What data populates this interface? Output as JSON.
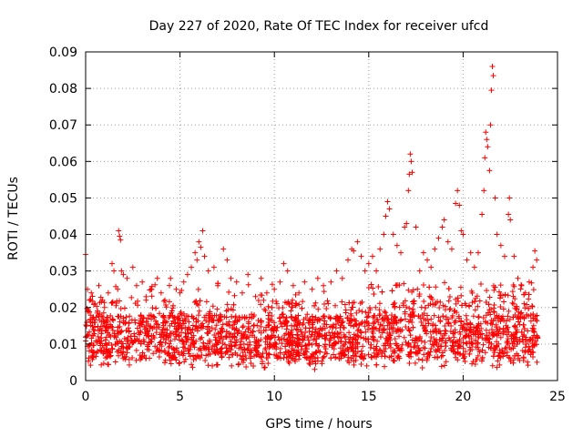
{
  "chart_data": {
    "type": "scatter",
    "title": "Day 227 of 2020, Rate Of TEC Index for receiver ufcd",
    "xlabel": "GPS time / hours",
    "ylabel": "ROTI / TECUs",
    "xlim": [
      0,
      25
    ],
    "ylim": [
      0,
      0.09
    ],
    "xticks": [
      "0",
      "5",
      "10",
      "15",
      "20",
      "25"
    ],
    "xtick_values": [
      0,
      5,
      10,
      15,
      20,
      25
    ],
    "yticks": [
      "0",
      "0.01",
      "0.02",
      "0.03",
      "0.04",
      "0.05",
      "0.06",
      "0.07",
      "0.08",
      "0.09"
    ],
    "ytick_values": [
      0,
      0.01,
      0.02,
      0.03,
      0.04,
      0.05,
      0.06,
      0.07,
      0.08,
      0.09
    ],
    "grid": true,
    "marker": "+",
    "series": [
      {
        "name": "ROTI",
        "color": "#ff0000",
        "points": [
          [
            0.0,
            0.0345
          ],
          [
            0.1,
            0.025
          ],
          [
            0.2,
            0.022
          ],
          [
            0.3,
            0.024
          ],
          [
            0.5,
            0.021
          ],
          [
            0.7,
            0.026
          ],
          [
            0.9,
            0.022
          ],
          [
            1.0,
            0.02
          ],
          [
            1.2,
            0.024
          ],
          [
            1.4,
            0.032
          ],
          [
            1.5,
            0.03
          ],
          [
            1.7,
            0.025
          ],
          [
            1.75,
            0.041
          ],
          [
            1.8,
            0.0395
          ],
          [
            1.85,
            0.0385
          ],
          [
            1.9,
            0.03
          ],
          [
            2.0,
            0.029
          ],
          [
            2.2,
            0.028
          ],
          [
            2.5,
            0.031
          ],
          [
            2.7,
            0.026
          ],
          [
            3.0,
            0.027
          ],
          [
            3.2,
            0.022
          ],
          [
            3.5,
            0.025
          ],
          [
            3.8,
            0.028
          ],
          [
            4.0,
            0.024
          ],
          [
            4.2,
            0.022
          ],
          [
            4.5,
            0.028
          ],
          [
            4.8,
            0.025
          ],
          [
            5.0,
            0.024
          ],
          [
            5.2,
            0.027
          ],
          [
            5.4,
            0.029
          ],
          [
            5.6,
            0.031
          ],
          [
            5.8,
            0.035
          ],
          [
            5.9,
            0.033
          ],
          [
            6.0,
            0.038
          ],
          [
            6.1,
            0.0365
          ],
          [
            6.2,
            0.041
          ],
          [
            6.3,
            0.034
          ],
          [
            6.5,
            0.03
          ],
          [
            6.8,
            0.031
          ],
          [
            7.0,
            0.026
          ],
          [
            7.3,
            0.036
          ],
          [
            7.5,
            0.033
          ],
          [
            7.7,
            0.028
          ],
          [
            8.0,
            0.027
          ],
          [
            8.3,
            0.024
          ],
          [
            8.6,
            0.029
          ],
          [
            9.0,
            0.023
          ],
          [
            9.3,
            0.028
          ],
          [
            9.6,
            0.024
          ],
          [
            10.0,
            0.025
          ],
          [
            10.3,
            0.027
          ],
          [
            10.5,
            0.032
          ],
          [
            10.7,
            0.03
          ],
          [
            11.0,
            0.026
          ],
          [
            11.3,
            0.024
          ],
          [
            11.6,
            0.027
          ],
          [
            12.0,
            0.025
          ],
          [
            12.3,
            0.028
          ],
          [
            12.6,
            0.026
          ],
          [
            13.0,
            0.027
          ],
          [
            13.3,
            0.03
          ],
          [
            13.6,
            0.028
          ],
          [
            13.9,
            0.033
          ],
          [
            14.1,
            0.036
          ],
          [
            14.2,
            0.0355
          ],
          [
            14.4,
            0.038
          ],
          [
            14.6,
            0.034
          ],
          [
            14.8,
            0.03
          ],
          [
            15.0,
            0.032
          ],
          [
            15.2,
            0.034
          ],
          [
            15.4,
            0.03
          ],
          [
            15.6,
            0.036
          ],
          [
            15.8,
            0.04
          ],
          [
            15.9,
            0.045
          ],
          [
            16.0,
            0.049
          ],
          [
            16.1,
            0.047
          ],
          [
            16.3,
            0.04
          ],
          [
            16.5,
            0.037
          ],
          [
            16.7,
            0.035
          ],
          [
            16.9,
            0.042
          ],
          [
            17.0,
            0.043
          ],
          [
            17.1,
            0.052
          ],
          [
            17.15,
            0.0565
          ],
          [
            17.2,
            0.062
          ],
          [
            17.25,
            0.06
          ],
          [
            17.3,
            0.057
          ],
          [
            17.5,
            0.042
          ],
          [
            17.7,
            0.03
          ],
          [
            17.9,
            0.035
          ],
          [
            18.1,
            0.033
          ],
          [
            18.3,
            0.031
          ],
          [
            18.5,
            0.036
          ],
          [
            18.7,
            0.039
          ],
          [
            18.9,
            0.042
          ],
          [
            19.0,
            0.044
          ],
          [
            19.2,
            0.038
          ],
          [
            19.4,
            0.036
          ],
          [
            19.6,
            0.0485
          ],
          [
            19.7,
            0.052
          ],
          [
            19.8,
            0.048
          ],
          [
            19.9,
            0.041
          ],
          [
            20.0,
            0.04
          ],
          [
            20.2,
            0.033
          ],
          [
            20.4,
            0.035
          ],
          [
            20.6,
            0.031
          ],
          [
            20.8,
            0.035
          ],
          [
            21.0,
            0.0455
          ],
          [
            21.1,
            0.052
          ],
          [
            21.15,
            0.061
          ],
          [
            21.2,
            0.068
          ],
          [
            21.25,
            0.066
          ],
          [
            21.3,
            0.064
          ],
          [
            21.4,
            0.0575
          ],
          [
            21.45,
            0.07
          ],
          [
            21.5,
            0.0795
          ],
          [
            21.55,
            0.086
          ],
          [
            21.6,
            0.0835
          ],
          [
            21.7,
            0.05
          ],
          [
            21.8,
            0.04
          ],
          [
            22.0,
            0.037
          ],
          [
            22.2,
            0.034
          ],
          [
            22.4,
            0.0455
          ],
          [
            22.45,
            0.05
          ],
          [
            22.5,
            0.044
          ],
          [
            22.7,
            0.034
          ],
          [
            22.9,
            0.028
          ],
          [
            23.1,
            0.026
          ],
          [
            23.3,
            0.024
          ],
          [
            23.5,
            0.027
          ],
          [
            23.7,
            0.031
          ],
          [
            23.8,
            0.0355
          ],
          [
            23.9,
            0.033
          ]
        ]
      }
    ]
  }
}
